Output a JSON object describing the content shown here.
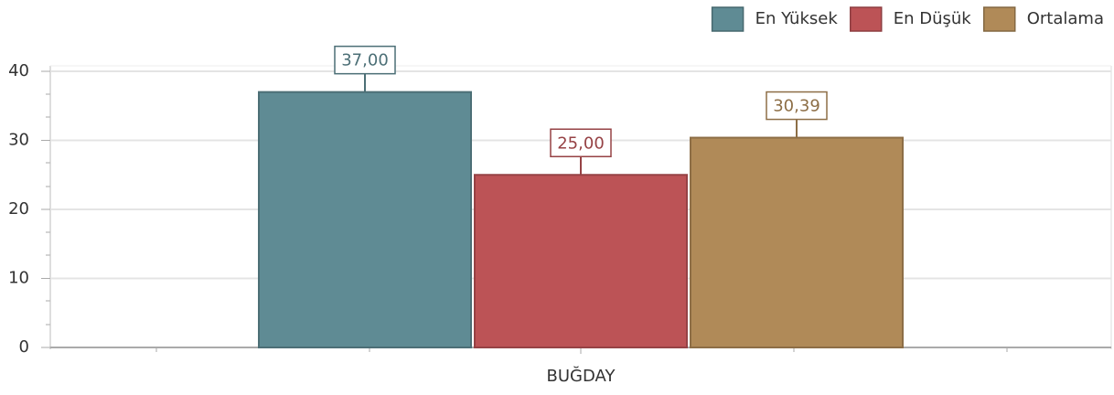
{
  "chart_data": {
    "type": "bar",
    "categories": [
      "BUĞDAY"
    ],
    "series": [
      {
        "name": "En Yüksek",
        "color": "#5f8b94",
        "values": [
          37
        ],
        "value_labels": [
          "37,00"
        ]
      },
      {
        "name": "En Düşük",
        "color": "#bc5356",
        "values": [
          25
        ],
        "value_labels": [
          "25,00"
        ]
      },
      {
        "name": "Ortalama",
        "color": "#b08a58",
        "values": [
          30.39
        ],
        "value_labels": [
          "30,39"
        ]
      }
    ],
    "ylim": [
      0,
      40
    ],
    "yticks": [
      0,
      10,
      20,
      30,
      40
    ],
    "grid": true,
    "legend": "top-right"
  }
}
